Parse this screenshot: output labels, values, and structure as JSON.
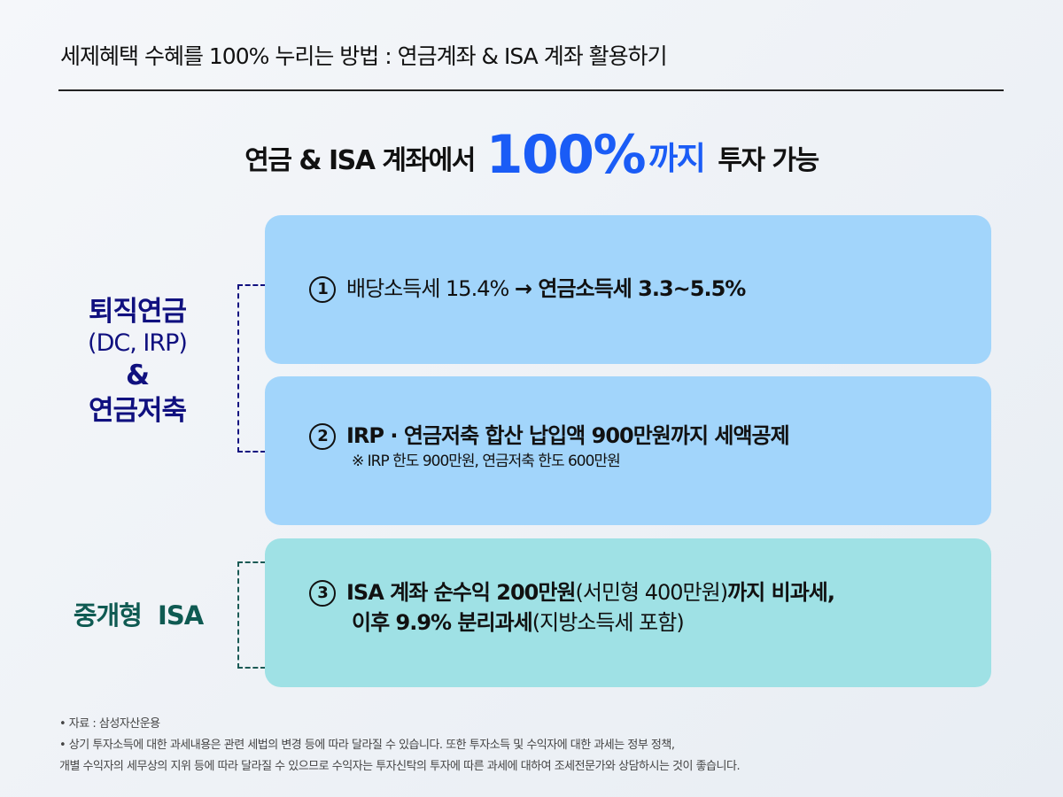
{
  "title": "세제혜택 수혜를 100% 누리는 방법 : 연금계좌 & ISA 계좌 활용하기",
  "headline": {
    "prefix": "연금 & ISA 계좌에서",
    "highlight_number": "100%",
    "highlight_word": "까지",
    "suffix": "투자 가능"
  },
  "groups": [
    {
      "label_main": "퇴직연금",
      "label_paren": "(DC, IRP)",
      "label_amp": "&",
      "label_sub": "연금저축",
      "color": "#10107f"
    },
    {
      "label_main": "중개형  ISA",
      "color": "#0f5a52"
    }
  ],
  "items": [
    {
      "num": "1",
      "text_regular": "배당소득세 15.4% ",
      "arrow": "→",
      "text_bold": " 연금소득세 3.3~5.5%"
    },
    {
      "num": "2",
      "text_bold": "IRP · 연금저축 합산 납입액 900만원까지 세액공제",
      "note": "※ IRP 한도 900만원, 연금저축 한도 600만원"
    },
    {
      "num": "3",
      "line1_bold_a": "ISA 계좌 순수익 200만원",
      "line1_regular": "(서민형 400만원)",
      "line1_bold_b": "까지 비과세,",
      "line2_bold": "이후 9.9% 분리과세",
      "line2_regular": "(지방소득세 포함)"
    }
  ],
  "colors": {
    "highlight": "#1a5cf6",
    "box_blue": "#a2d5fb",
    "box_teal": "#9fe1e5"
  },
  "footer": {
    "source": "• 자료 : 삼성자산운용",
    "disclaimer_1": "• 상기 투자소득에 대한 과세내용은 관련 세법의 변경 등에 따라 달라질 수 있습니다. 또한 투자소득 및 수익자에 대한 과세는 정부 정책,",
    "disclaimer_2": "개별 수익자의 세무상의 지위 등에 따라 달라질 수 있으므로 수익자는 투자신탁의 투자에 따른 과세에 대하여 조세전문가와 상담하시는 것이 좋습니다."
  }
}
